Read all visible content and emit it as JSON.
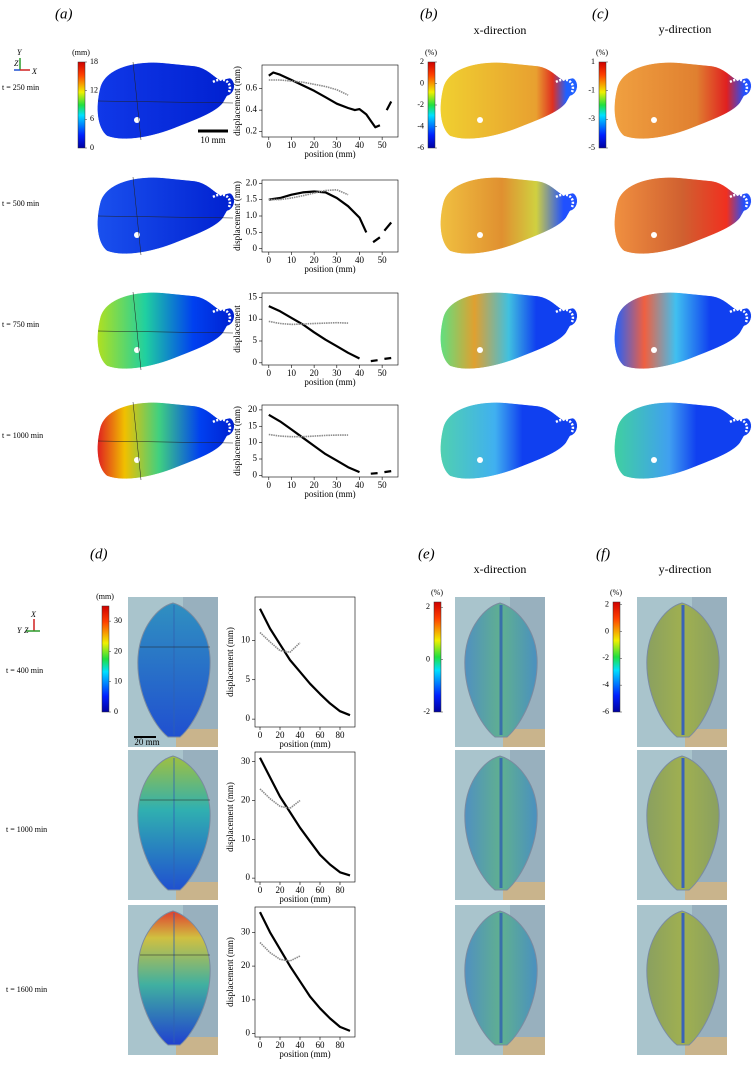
{
  "chart_data": [
    {
      "type": "line",
      "xlabel": "position (mm)",
      "ylabel": "displacement (mm)",
      "xlim": [
        -3,
        57
      ],
      "xticks": [
        0,
        10,
        20,
        30,
        40,
        50
      ],
      "ylim": [
        0.15,
        0.82
      ],
      "yticks": [
        0.2,
        0.4,
        0.6
      ],
      "x": [
        0,
        2,
        5,
        10,
        15,
        20,
        25,
        30,
        35,
        38,
        40,
        43,
        45,
        47,
        49,
        50,
        52,
        54
      ],
      "series": [
        {
          "color": "#000000",
          "values": [
            0.72,
            0.75,
            0.73,
            0.68,
            0.63,
            0.58,
            0.52,
            0.46,
            0.42,
            0.4,
            0.41,
            0.36,
            0.3,
            0.24,
            0.26,
            null,
            0.4,
            0.48
          ]
        },
        {
          "color": "#8c8c8c",
          "values": [
            0.68,
            0.68,
            0.68,
            0.67,
            0.66,
            0.64,
            0.62,
            0.59,
            0.54,
            null,
            null,
            null,
            null,
            null,
            null,
            null,
            null,
            null
          ]
        }
      ]
    },
    {
      "type": "line",
      "xlabel": "position (mm)",
      "ylabel": "displacement (mm)",
      "xlim": [
        -3,
        57
      ],
      "xticks": [
        0,
        10,
        20,
        30,
        40,
        50
      ],
      "ylim": [
        -0.1,
        2.1
      ],
      "yticks": [
        0,
        0.5,
        {
          "value": 1,
          "label": "1.0"
        },
        1.5,
        {
          "value": 2,
          "label": "2.0"
        }
      ],
      "x": [
        0,
        5,
        10,
        15,
        20,
        25,
        30,
        35,
        40,
        43,
        45,
        46,
        49,
        50,
        51,
        54
      ],
      "series": [
        {
          "color": "#000000",
          "values": [
            1.5,
            1.55,
            1.65,
            1.72,
            1.75,
            1.72,
            1.55,
            1.3,
            0.95,
            0.5,
            null,
            0.2,
            0.35,
            null,
            0.55,
            0.8
          ]
        },
        {
          "color": "#8c8c8c",
          "values": [
            1.5,
            1.5,
            1.55,
            1.62,
            1.7,
            1.78,
            1.8,
            1.65,
            null,
            null,
            null,
            null,
            null,
            null,
            null,
            null
          ]
        }
      ]
    },
    {
      "type": "line",
      "xlabel": "position (mm)",
      "ylabel": "displacement",
      "xlim": [
        -3,
        57
      ],
      "xticks": [
        0,
        10,
        20,
        30,
        40,
        50
      ],
      "ylim": [
        -0.5,
        16
      ],
      "yticks": [
        0,
        5,
        10,
        15
      ],
      "x": [
        0,
        5,
        10,
        15,
        20,
        25,
        30,
        35,
        40,
        43,
        45,
        48,
        50,
        51,
        54
      ],
      "series": [
        {
          "color": "#000000",
          "values": [
            13,
            11.8,
            10.3,
            8.8,
            7,
            5.3,
            3.8,
            2.3,
            1,
            null,
            0.4,
            0.6,
            null,
            0.9,
            1.1
          ]
        },
        {
          "color": "#8c8c8c",
          "values": [
            9.5,
            9,
            8.8,
            8.9,
            9,
            9.1,
            9.2,
            9.1,
            null,
            null,
            null,
            null,
            null,
            null,
            null
          ]
        }
      ]
    },
    {
      "type": "line",
      "xlabel": "position (mm)",
      "ylabel": "displacement (mm)",
      "xlim": [
        -3,
        57
      ],
      "xticks": [
        0,
        10,
        20,
        30,
        40,
        50
      ],
      "ylim": [
        -0.5,
        21.5
      ],
      "yticks": [
        0,
        5,
        10,
        15,
        20
      ],
      "x": [
        0,
        5,
        10,
        15,
        20,
        25,
        30,
        35,
        40,
        43,
        45,
        48,
        50,
        51,
        54
      ],
      "series": [
        {
          "color": "#000000",
          "values": [
            18.5,
            16.5,
            14,
            11.5,
            9,
            6.5,
            4.5,
            2.5,
            1,
            null,
            0.5,
            0.7,
            null,
            1,
            1.3
          ]
        },
        {
          "color": "#8c8c8c",
          "values": [
            12.5,
            12,
            11.8,
            11.8,
            12,
            12.2,
            12.3,
            12.3,
            null,
            null,
            null,
            null,
            null,
            null,
            null
          ]
        }
      ]
    },
    {
      "type": "line",
      "xlabel": "position (mm)",
      "ylabel": "displacement (mm)",
      "xlim": [
        -5,
        95
      ],
      "xticks": [
        0,
        20,
        40,
        60,
        80
      ],
      "ylim": [
        -1,
        15.5
      ],
      "yticks": [
        0,
        5,
        10
      ],
      "x": [
        0,
        10,
        20,
        30,
        40,
        50,
        60,
        70,
        80,
        90
      ],
      "series": [
        {
          "color": "#000000",
          "values": [
            14,
            11.5,
            9.5,
            7.5,
            6,
            4.5,
            3.2,
            2,
            1,
            0.5
          ]
        },
        {
          "color": "#8c8c8c",
          "values": [
            11,
            9.8,
            8.7,
            8.5,
            9.7,
            null,
            null,
            null,
            null,
            null
          ]
        }
      ]
    },
    {
      "type": "line",
      "xlabel": "position (mm)",
      "ylabel": "displacement (mm)",
      "xlim": [
        -5,
        95
      ],
      "xticks": [
        0,
        20,
        40,
        60,
        80
      ],
      "ylim": [
        -1,
        32.5
      ],
      "yticks": [
        0,
        10,
        20,
        30
      ],
      "x": [
        0,
        10,
        20,
        30,
        40,
        50,
        60,
        70,
        80,
        90
      ],
      "series": [
        {
          "color": "#000000",
          "values": [
            31,
            26,
            21,
            17,
            13,
            9.5,
            6,
            3.5,
            1.5,
            0.7
          ]
        },
        {
          "color": "#8c8c8c",
          "values": [
            23,
            20.5,
            18.5,
            18,
            20,
            null,
            null,
            null,
            null,
            null
          ]
        }
      ]
    },
    {
      "type": "line",
      "xlabel": "position (mm)",
      "ylabel": "displacement (mm)",
      "xlim": [
        -5,
        95
      ],
      "xticks": [
        0,
        20,
        40,
        60,
        80
      ],
      "ylim": [
        -1,
        37.5
      ],
      "yticks": [
        0,
        10,
        20,
        30
      ],
      "x": [
        0,
        10,
        20,
        30,
        40,
        50,
        60,
        70,
        80,
        90
      ],
      "series": [
        {
          "color": "#000000",
          "values": [
            36,
            30,
            25,
            20,
            15.5,
            11,
            7.5,
            4.5,
            2,
            0.8
          ]
        },
        {
          "color": "#8c8c8c",
          "values": [
            27,
            24,
            22,
            21.5,
            23,
            null,
            null,
            null,
            null,
            null
          ]
        }
      ]
    }
  ],
  "panel_labels": [
    "(a)",
    "(b)",
    "(c)",
    "(d)",
    "(e)",
    "(f)"
  ],
  "directions": [
    "x-direction",
    "y-direction",
    "x-direction",
    "y-direction"
  ],
  "time_labels_top": [
    "t = 250 min",
    "t = 500 min",
    "t = 750 min",
    "t = 1000 min"
  ],
  "time_labels_bottom": [
    "t = 400 min",
    "t = 1000 min",
    "t = 1600 min"
  ],
  "colorbars": [
    {
      "unit": "(mm)",
      "lim": [
        0,
        18
      ],
      "ticks": [
        0,
        6,
        12,
        18
      ]
    },
    {
      "unit": "(%)",
      "lim": [
        -6,
        2
      ],
      "ticks": [
        -6,
        -4,
        -2,
        0,
        2
      ]
    },
    {
      "unit": "(%)",
      "lim": [
        -5,
        1
      ],
      "ticks": [
        -5,
        -3,
        -1,
        1
      ]
    },
    {
      "unit": "(mm)",
      "lim": [
        0,
        35
      ],
      "ticks": [
        0,
        10,
        20,
        30
      ]
    },
    {
      "unit": "(%)",
      "lim": [
        -2,
        2.2
      ],
      "ticks": [
        -2,
        0,
        2
      ]
    },
    {
      "unit": "(%)",
      "lim": [
        -6,
        2.2
      ],
      "ticks": [
        -6,
        -4,
        -2,
        0,
        2
      ]
    }
  ],
  "scale_bars": [
    "10 mm",
    "20 mm"
  ],
  "axes_top": [
    "Y",
    "Z",
    "X"
  ],
  "axes_bottom": [
    "X",
    "Y",
    "Z"
  ]
}
